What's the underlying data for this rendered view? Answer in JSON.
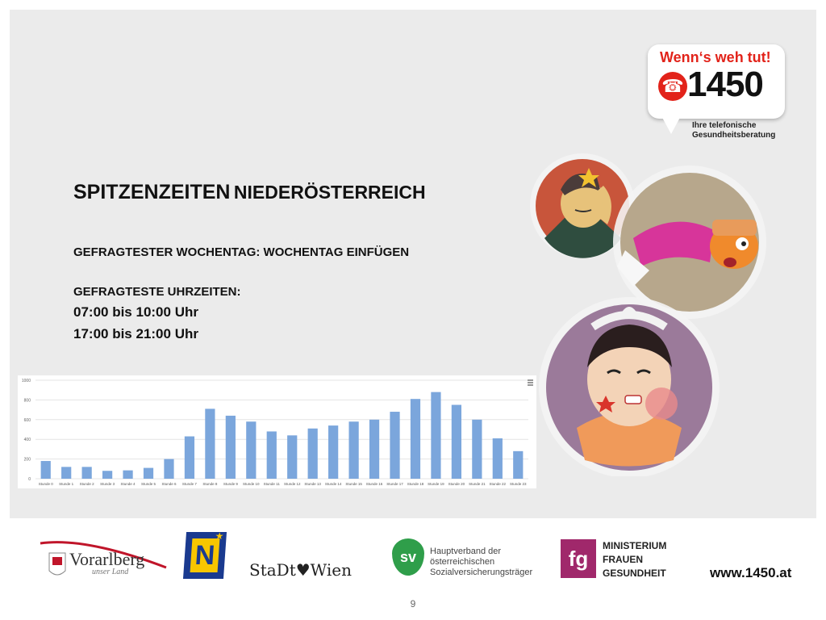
{
  "slide": {
    "title_part1": "SPITZENZEITEN",
    "title_part2": "NIEDERÖSTERREICH",
    "weekday_line": "GEFRAGTESTER WOCHENTAG: WOCHENTAG EINFÜGEN",
    "times_heading": "GEFRAGTESTE UHRZEITEN:",
    "time_range_1": "07:00 bis 10:00 Uhr",
    "time_range_2": "17:00 bis 21:00 Uhr",
    "page_number": "9"
  },
  "logo": {
    "slogan": "Wenn‘s weh tut!",
    "number": "1450",
    "subtitle_line1": "Ihre telefonische",
    "subtitle_line2": "Gesundheitsberatung",
    "red": "#e2231a"
  },
  "chart_data": {
    "type": "bar",
    "categories": [
      "Stunde 0",
      "Stunde 1",
      "Stunde 2",
      "Stunde 3",
      "Stunde 4",
      "Stunde 5",
      "Stunde 6",
      "Stunde 7",
      "Stunde 8",
      "Stunde 9",
      "Stunde 10",
      "Stunde 11",
      "Stunde 12",
      "Stunde 13",
      "Stunde 14",
      "Stunde 15",
      "Stunde 16",
      "Stunde 17",
      "Stunde 18",
      "Stunde 19",
      "Stunde 20",
      "Stunde 21",
      "Stunde 22",
      "Stunde 23"
    ],
    "values": [
      180,
      120,
      120,
      80,
      85,
      110,
      200,
      430,
      710,
      640,
      580,
      480,
      440,
      510,
      540,
      580,
      600,
      680,
      810,
      880,
      750,
      600,
      410,
      280
    ],
    "yticks": [
      "0",
      "200",
      "400",
      "600",
      "800",
      "1000"
    ],
    "ylim": [
      0,
      1000
    ],
    "bar_color": "#7ba6dc",
    "grid": true,
    "menu_icon": "hamburger-icon"
  },
  "footer": {
    "vorarlberg_name": "Vorarlberg",
    "vorarlberg_tagline": "unser Land",
    "noe_letter": "N",
    "wien_name": "StaDt♥Wien",
    "sv_letters": "sv",
    "sv_line1": "Hauptverband der",
    "sv_line2": "österreichischen",
    "sv_line3": "Sozialversicherungsträger",
    "ministry_line1": "MINISTERIUM",
    "ministry_line2": "FRAUEN",
    "ministry_line3": "GESUNDHEIT",
    "ministry_logo": "fg",
    "url": "www.1450.at"
  }
}
